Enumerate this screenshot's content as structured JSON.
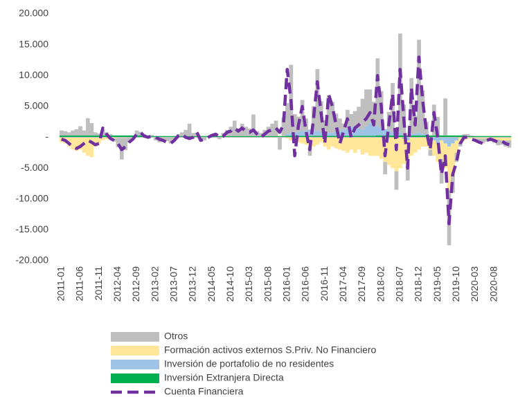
{
  "chart_data": {
    "type": "bar",
    "stacked": true,
    "categories": [
      "2011-01",
      null,
      null,
      null,
      null,
      "2011-06",
      null,
      null,
      null,
      null,
      "2011-11",
      null,
      null,
      null,
      null,
      "2012-04",
      null,
      null,
      null,
      null,
      "2012-09",
      null,
      null,
      null,
      null,
      "2013-02",
      null,
      null,
      null,
      null,
      "2013-07",
      null,
      null,
      null,
      null,
      "2013-12",
      null,
      null,
      null,
      null,
      "2014-05",
      null,
      null,
      null,
      null,
      "2014-10",
      null,
      null,
      null,
      null,
      "2015-03",
      null,
      null,
      null,
      null,
      "2015-08",
      null,
      null,
      null,
      null,
      "2016-01",
      null,
      null,
      null,
      null,
      "2016-06",
      null,
      null,
      null,
      null,
      "2016-11",
      null,
      null,
      null,
      null,
      "2017-04",
      null,
      null,
      null,
      null,
      "2017-09",
      null,
      null,
      null,
      null,
      "2018-02",
      null,
      null,
      null,
      null,
      "2018-07",
      null,
      null,
      null,
      null,
      "2018-12",
      null,
      null,
      null,
      null,
      "2019-05",
      null,
      null,
      null,
      null,
      "2019-10",
      null,
      null,
      null,
      null,
      "2020-03",
      null,
      null,
      null,
      null,
      "2020-08",
      null,
      null,
      null,
      null
    ],
    "ylim": [
      -20000,
      20000
    ],
    "yticks": [
      {
        "value": -20000,
        "label": "-20.000"
      },
      {
        "value": -15000,
        "label": "-15.000"
      },
      {
        "value": -10000,
        "label": "-10.000"
      },
      {
        "value": -5000,
        "label": "-5.000"
      },
      {
        "value": 0,
        "label": "-"
      },
      {
        "value": 5000,
        "label": "5.000"
      },
      {
        "value": 10000,
        "label": "10.000"
      },
      {
        "value": 15000,
        "label": "15.000"
      },
      {
        "value": 20000,
        "label": "20.000"
      }
    ],
    "grid": false,
    "legend": "bottom",
    "series": [
      {
        "name": "Otros",
        "color": "#bfbfbf",
        "type": "bar",
        "values": [
          800,
          700,
          500,
          800,
          1000,
          1500,
          800,
          2800,
          2000,
          500,
          300,
          1000,
          500,
          200,
          -500,
          -1500,
          -3500,
          -2000,
          -800,
          -300,
          800,
          600,
          200,
          0,
          200,
          -500,
          -800,
          -500,
          -600,
          -1000,
          -300,
          300,
          600,
          1000,
          2000,
          500,
          500,
          -400,
          -500,
          0,
          300,
          500,
          -300,
          500,
          1000,
          1500,
          2500,
          1200,
          2000,
          1500,
          1200,
          3500,
          800,
          500,
          1000,
          1500,
          2000,
          2500,
          -2000,
          3000,
          5000,
          11000,
          3000,
          2500,
          5000,
          2000,
          -1500,
          4000,
          10000,
          5000,
          2000,
          6000,
          5000,
          3000,
          2000,
          1000,
          3000,
          2000,
          2500,
          3500,
          5000,
          6000,
          5500,
          4000,
          11000,
          6000,
          -2000,
          3000,
          8000,
          -3000,
          16000,
          5000,
          -3000,
          9000,
          3000,
          15000,
          7000,
          2000,
          -1000,
          5000,
          3000,
          -4000,
          6000,
          -9000,
          -3000,
          -1500,
          -500,
          200,
          300,
          100,
          -200,
          -500,
          -800,
          -500,
          -300,
          -600,
          -900,
          -700,
          -1000,
          -1200
        ]
      },
      {
        "name": "Formación activos externos S.Priv. No Financiero",
        "color": "#ffe699",
        "type": "bar",
        "values": [
          -800,
          -1000,
          -1500,
          -2000,
          -2200,
          -2000,
          -2500,
          -3000,
          -3200,
          -1500,
          -1000,
          -500,
          -300,
          -200,
          -200,
          -100,
          -100,
          -100,
          -50,
          -50,
          0,
          0,
          0,
          0,
          0,
          0,
          0,
          0,
          0,
          0,
          0,
          0,
          0,
          0,
          0,
          0,
          0,
          0,
          0,
          0,
          0,
          0,
          0,
          0,
          0,
          0,
          0,
          0,
          0,
          0,
          0,
          0,
          0,
          0,
          0,
          0,
          0,
          0,
          0,
          0,
          -200,
          -500,
          -800,
          -800,
          -1000,
          -1200,
          -1500,
          -1500,
          -1200,
          -800,
          -1500,
          -2000,
          -1500,
          -1800,
          -2000,
          -2200,
          -2500,
          -2000,
          -2500,
          -2000,
          -2800,
          -2500,
          -3000,
          -3000,
          -3000,
          -3500,
          -4000,
          -4500,
          -5000,
          -5500,
          -5000,
          -4000,
          -3500,
          -3000,
          -2500,
          -2000,
          -1500,
          -1500,
          -2000,
          -2500,
          -3000,
          -3000,
          -4000,
          -7000,
          -5000,
          -2000,
          -1000,
          -500,
          -300,
          -200,
          -200,
          -200,
          -200,
          -200,
          -300,
          -300,
          -400,
          -500,
          -500,
          -500
        ]
      },
      {
        "name": "Inversión de portafolio de no residentes",
        "color": "#9dc3e6",
        "type": "bar",
        "values": [
          0,
          0,
          0,
          0,
          0,
          0,
          0,
          0,
          0,
          0,
          0,
          0,
          0,
          0,
          0,
          0,
          0,
          0,
          0,
          0,
          0,
          0,
          0,
          0,
          0,
          0,
          0,
          0,
          0,
          0,
          0,
          0,
          0,
          0,
          0,
          0,
          0,
          0,
          0,
          0,
          0,
          0,
          0,
          0,
          0,
          0,
          0,
          0,
          0,
          0,
          0,
          0,
          0,
          0,
          0,
          0,
          0,
          0,
          0,
          0,
          300,
          500,
          500,
          600,
          800,
          800,
          1000,
          800,
          800,
          600,
          500,
          500,
          500,
          600,
          800,
          1000,
          1200,
          1500,
          1500,
          1200,
          1000,
          1500,
          2000,
          1500,
          1500,
          1200,
          1000,
          800,
          500,
          300,
          500,
          -300,
          -500,
          300,
          200,
          500,
          300,
          200,
          0,
          -500,
          -1000,
          -500,
          -1000,
          -1500,
          -1000,
          -500,
          0,
          0,
          0,
          0,
          0,
          0,
          0,
          0,
          0,
          0,
          0,
          0,
          0,
          0
        ]
      },
      {
        "name": "Inversión Extranjera Directa",
        "color": "#00b050",
        "type": "bar",
        "values": [
          300,
          300,
          300,
          300,
          300,
          300,
          300,
          300,
          300,
          300,
          300,
          300,
          300,
          300,
          300,
          300,
          300,
          300,
          300,
          300,
          300,
          300,
          300,
          300,
          200,
          200,
          200,
          200,
          200,
          200,
          200,
          200,
          200,
          200,
          200,
          200,
          200,
          200,
          200,
          200,
          200,
          200,
          200,
          200,
          200,
          200,
          200,
          200,
          200,
          200,
          200,
          200,
          200,
          200,
          200,
          200,
          200,
          200,
          200,
          200,
          250,
          250,
          250,
          250,
          250,
          250,
          250,
          250,
          250,
          250,
          250,
          250,
          250,
          250,
          250,
          250,
          250,
          250,
          250,
          250,
          250,
          250,
          250,
          250,
          300,
          300,
          300,
          300,
          300,
          300,
          300,
          300,
          300,
          300,
          300,
          300,
          300,
          300,
          300,
          300,
          300,
          300,
          300,
          300,
          300,
          300,
          300,
          300,
          200,
          200,
          200,
          200,
          200,
          200,
          200,
          200,
          200,
          200,
          200,
          200
        ]
      },
      {
        "name": "Cuenta Financiera",
        "color": "#7030a0",
        "type": "line",
        "values": [
          -300,
          -500,
          -1000,
          -1500,
          -1800,
          -1500,
          -1000,
          -500,
          -800,
          -1200,
          -1000,
          1500,
          500,
          -200,
          -500,
          -1000,
          -2000,
          -1500,
          -800,
          -300,
          500,
          800,
          200,
          0,
          200,
          0,
          -300,
          -500,
          -800,
          -1000,
          -500,
          200,
          500,
          0,
          -200,
          0,
          800,
          -500,
          -300,
          0,
          300,
          500,
          0,
          200,
          800,
          1000,
          1500,
          1000,
          1500,
          1000,
          800,
          1200,
          500,
          0,
          500,
          1000,
          1200,
          1500,
          800,
          2000,
          11000,
          6000,
          -3000,
          2000,
          5000,
          1000,
          -2000,
          3000,
          9000,
          4000,
          -1000,
          7000,
          5000,
          2000,
          -1000,
          1000,
          3000,
          0,
          1500,
          2000,
          2500,
          3000,
          4000,
          2000,
          10000,
          5000,
          -3000,
          2000,
          7000,
          -2000,
          11000,
          3000,
          -5000,
          8000,
          2000,
          13000,
          6000,
          1000,
          -2000,
          4000,
          0,
          -6000,
          -3000,
          -14000,
          -6000,
          -4000,
          -1000,
          0,
          0,
          -300,
          -500,
          -800,
          -1000,
          -500,
          -300,
          -500,
          -800,
          -600,
          -1000,
          -1200
        ]
      }
    ]
  }
}
